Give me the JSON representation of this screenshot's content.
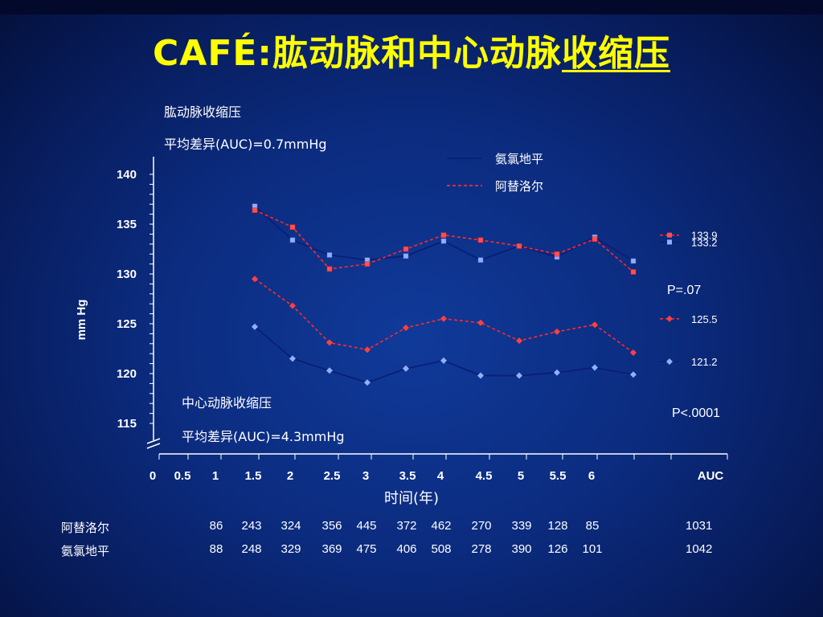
{
  "title_prefix": "CAFÉ:",
  "title_mid": "肱动脉和中心动脉",
  "title_underlined": "收缩压",
  "upper_panel_label": "肱动脉收缩压",
  "upper_panel_diff": "平均差异(AUC)=0.7mmHg",
  "lower_panel_label": "中心动脉收缩压",
  "lower_panel_diff": "平均差异(AUC)=4.3mmHg",
  "p_upper": "P=.07",
  "p_lower": "P<.0001",
  "colors": {
    "amlodipine": "#0a1e78",
    "atenolol": "#ff2a2a",
    "title": "#ffff00",
    "text": "#ffffff"
  },
  "chart_data": {
    "type": "line",
    "xlabel": "时间(年)",
    "ylabel": "mm Hg",
    "ylim": [
      115,
      140
    ],
    "yticks": [
      115,
      120,
      125,
      130,
      135,
      140
    ],
    "xticks": [
      "0",
      "0.5",
      "1",
      "1.5",
      "2",
      "2.5",
      "3",
      "3.5",
      "4",
      "4.5",
      "5",
      "5.5",
      "6",
      "AUC"
    ],
    "x": [
      0.5,
      1,
      1.5,
      2,
      2.5,
      3,
      3.5,
      4,
      4.5,
      5,
      5.5
    ],
    "series": [
      {
        "name": "氨氯地平",
        "group": "brachial",
        "style": "solid",
        "values": [
          136.8,
          133.4,
          131.9,
          131.4,
          131.8,
          133.3,
          131.4,
          132.8,
          131.7,
          133.7,
          131.3
        ],
        "auc": 133.2,
        "auc_label": "133.2"
      },
      {
        "name": "阿替洛尔",
        "group": "brachial",
        "style": "dashed",
        "values": [
          136.4,
          134.7,
          130.5,
          131.0,
          132.5,
          133.9,
          133.4,
          132.8,
          132.0,
          133.5,
          130.2
        ],
        "auc": 133.9,
        "auc_label": "133.9"
      },
      {
        "name": "阿替洛尔",
        "group": "central",
        "style": "dashed",
        "values": [
          129.5,
          126.8,
          123.1,
          122.4,
          124.6,
          125.5,
          125.1,
          123.3,
          124.2,
          124.9,
          122.1
        ],
        "auc": 125.5,
        "auc_label": "125.5"
      },
      {
        "name": "氨氯地平",
        "group": "central",
        "style": "solid",
        "values": [
          124.7,
          121.5,
          120.3,
          119.1,
          120.5,
          121.3,
          119.8,
          119.8,
          120.1,
          120.6,
          119.9
        ],
        "auc": 121.2,
        "auc_label": "121.2"
      }
    ],
    "legend": [
      {
        "name": "氨氯地平",
        "style": "solid"
      },
      {
        "name": "阿替洛尔",
        "style": "dashed"
      }
    ]
  },
  "counts": {
    "rows": [
      {
        "name": "阿替洛尔",
        "values": [
          "86",
          "243",
          "324",
          "356",
          "445",
          "372",
          "462",
          "270",
          "339",
          "128",
          "85"
        ],
        "total": "1031"
      },
      {
        "name": "氨氯地平",
        "values": [
          "88",
          "248",
          "329",
          "369",
          "475",
          "406",
          "508",
          "278",
          "390",
          "126",
          "101"
        ],
        "total": "1042"
      }
    ]
  }
}
